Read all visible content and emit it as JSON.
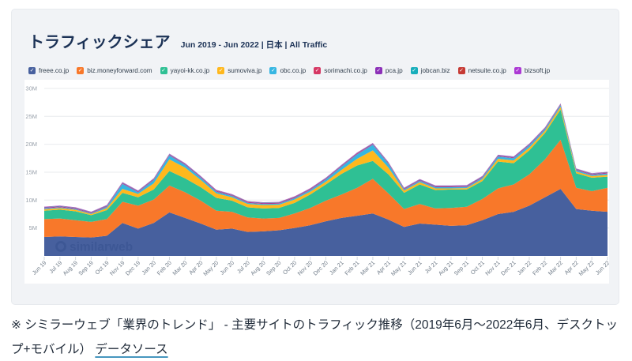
{
  "card": {
    "title": "トラフィックシェア",
    "subtitle": "Jun 2019 - Jun 2022 | 日本 | All Traffic"
  },
  "watermark": "similarweb",
  "caption": {
    "text": "※ シミラーウェブ「業界のトレンド」 - 主要サイトのトラフィック推移（2019年6月～2022年6月、デスクトップ+モバイル）",
    "link": "データソース"
  },
  "chart_data": {
    "type": "area",
    "stacked": true,
    "unit": "millions of visits",
    "ylim": [
      0,
      30
    ],
    "y_ticks": [
      "5M",
      "10M",
      "15M",
      "20M",
      "25M",
      "30M"
    ],
    "grid": true,
    "legend_position": "top",
    "x": [
      "Jun 19",
      "Jul 19",
      "Aug 19",
      "Sep 19",
      "Oct 19",
      "Nov 19",
      "Dec 19",
      "Jan 20",
      "Feb 20",
      "Mar 20",
      "Apr 20",
      "May 20",
      "Jun 20",
      "Jul 20",
      "Aug 20",
      "Sep 20",
      "Oct 20",
      "Nov 20",
      "Dec 20",
      "Jan 21",
      "Feb 21",
      "Mar 21",
      "Apr 21",
      "May 21",
      "Jun 21",
      "Jul 21",
      "Aug 21",
      "Sep 21",
      "Oct 21",
      "Nov 21",
      "Dec 21",
      "Jan 22",
      "Feb 22",
      "Mar 22",
      "Apr 22",
      "May 22",
      "Jun 22"
    ],
    "series": [
      {
        "name": "freee.co.jp",
        "color": "#47609E",
        "values": [
          3.4,
          3.5,
          3.4,
          3.3,
          3.6,
          5.9,
          4.9,
          5.9,
          7.8,
          6.8,
          5.8,
          4.7,
          4.9,
          4.3,
          4.4,
          4.6,
          5.0,
          5.5,
          6.2,
          6.8,
          7.2,
          7.6,
          6.5,
          5.2,
          5.8,
          5.6,
          5.4,
          5.5,
          6.4,
          7.5,
          7.9,
          9.0,
          10.5,
          12.0,
          8.4,
          8.1,
          7.9
        ]
      },
      {
        "name": "biz.moneyforward.com",
        "color": "#F8782A",
        "values": [
          3.2,
          3.2,
          3.0,
          2.8,
          3.0,
          3.8,
          4.1,
          4.2,
          4.8,
          4.6,
          4.1,
          3.4,
          3.0,
          2.6,
          2.3,
          2.2,
          2.6,
          3.1,
          3.7,
          4.2,
          5.0,
          6.2,
          4.7,
          3.2,
          3.5,
          2.9,
          3.2,
          3.3,
          3.8,
          4.6,
          4.9,
          5.6,
          6.8,
          8.8,
          3.8,
          3.5,
          4.3
        ]
      },
      {
        "name": "yayoi-kk.co.jp",
        "color": "#2FC094",
        "values": [
          1.5,
          1.6,
          1.6,
          1.2,
          1.6,
          1.6,
          1.5,
          1.8,
          2.6,
          2.5,
          2.4,
          2.3,
          2.0,
          1.8,
          1.8,
          1.8,
          1.9,
          2.4,
          2.9,
          3.7,
          4.0,
          3.2,
          3.4,
          2.9,
          3.5,
          3.3,
          3.3,
          3.1,
          3.2,
          4.8,
          3.8,
          4.3,
          4.7,
          5.4,
          2.6,
          2.4,
          2.0
        ]
      },
      {
        "name": "sumoviva.jp",
        "color": "#FFB81D",
        "values": [
          0.25,
          0.25,
          0.25,
          0.2,
          0.35,
          0.7,
          0.6,
          1.1,
          2.1,
          1.9,
          1.3,
          0.8,
          0.6,
          0.6,
          0.6,
          0.55,
          0.6,
          0.5,
          0.5,
          0.7,
          1.2,
          1.9,
          1.2,
          0.4,
          0.4,
          0.3,
          0.2,
          0.25,
          0.35,
          0.5,
          0.5,
          0.5,
          0.4,
          0.5,
          0.3,
          0.3,
          0.3
        ]
      },
      {
        "name": "obc.co.jp",
        "color": "#36B6E2",
        "values": [
          0.15,
          0.15,
          0.15,
          0.1,
          0.25,
          0.9,
          0.3,
          0.6,
          0.7,
          0.5,
          0.4,
          0.3,
          0.25,
          0.2,
          0.2,
          0.2,
          0.25,
          0.3,
          0.4,
          0.6,
          0.8,
          1.0,
          0.7,
          0.2,
          0.25,
          0.2,
          0.2,
          0.2,
          0.25,
          0.4,
          0.4,
          0.4,
          0.3,
          0.3,
          0.25,
          0.2,
          0.25
        ]
      },
      {
        "name": "sorimachi.co.jp",
        "color": "#D63864",
        "values": [
          0.08,
          0.08,
          0.08,
          0.08,
          0.08,
          0.08,
          0.08,
          0.08,
          0.08,
          0.08,
          0.08,
          0.08,
          0.08,
          0.08,
          0.08,
          0.08,
          0.08,
          0.08,
          0.08,
          0.08,
          0.08,
          0.08,
          0.08,
          0.08,
          0.08,
          0.08,
          0.08,
          0.08,
          0.08,
          0.08,
          0.08,
          0.08,
          0.08,
          0.08,
          0.08,
          0.08,
          0.08
        ]
      },
      {
        "name": "pca.jp",
        "color": "#8C30B8",
        "values": [
          0.1,
          0.1,
          0.1,
          0.1,
          0.1,
          0.1,
          0.1,
          0.1,
          0.1,
          0.1,
          0.1,
          0.1,
          0.1,
          0.1,
          0.1,
          0.1,
          0.1,
          0.1,
          0.1,
          0.1,
          0.1,
          0.1,
          0.1,
          0.1,
          0.1,
          0.1,
          0.1,
          0.1,
          0.1,
          0.1,
          0.1,
          0.1,
          0.1,
          0.1,
          0.1,
          0.1,
          0.1
        ]
      },
      {
        "name": "jobcan.biz",
        "color": "#17AEBB",
        "values": [
          0.05,
          0.05,
          0.05,
          0.05,
          0.05,
          0.05,
          0.05,
          0.05,
          0.05,
          0.05,
          0.05,
          0.05,
          0.05,
          0.05,
          0.05,
          0.05,
          0.05,
          0.05,
          0.05,
          0.05,
          0.05,
          0.05,
          0.05,
          0.05,
          0.05,
          0.05,
          0.05,
          0.05,
          0.05,
          0.05,
          0.05,
          0.05,
          0.05,
          0.05,
          0.05,
          0.05,
          0.05
        ]
      },
      {
        "name": "netsuite.co.jp",
        "color": "#C63A34",
        "values": [
          0.04,
          0.04,
          0.04,
          0.04,
          0.04,
          0.04,
          0.04,
          0.04,
          0.04,
          0.04,
          0.04,
          0.04,
          0.04,
          0.04,
          0.04,
          0.04,
          0.04,
          0.04,
          0.04,
          0.04,
          0.04,
          0.04,
          0.04,
          0.04,
          0.04,
          0.04,
          0.04,
          0.04,
          0.04,
          0.04,
          0.04,
          0.04,
          0.04,
          0.04,
          0.04,
          0.04,
          0.04
        ]
      },
      {
        "name": "bizsoft.jp",
        "color": "#AC39D4",
        "values": [
          0.05,
          0.05,
          0.05,
          0.05,
          0.05,
          0.05,
          0.05,
          0.05,
          0.05,
          0.05,
          0.05,
          0.05,
          0.05,
          0.05,
          0.05,
          0.05,
          0.05,
          0.05,
          0.05,
          0.05,
          0.05,
          0.05,
          0.05,
          0.05,
          0.05,
          0.05,
          0.05,
          0.05,
          0.05,
          0.05,
          0.05,
          0.05,
          0.05,
          0.05,
          0.05,
          0.05,
          0.05
        ]
      }
    ]
  }
}
